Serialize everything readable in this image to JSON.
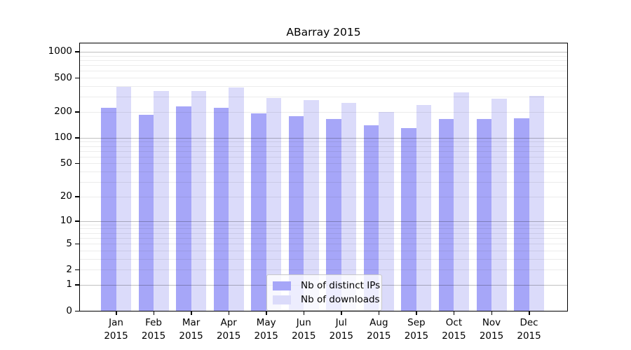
{
  "chart_data": {
    "type": "bar",
    "title": "ABarray 2015",
    "categories": [
      "Jan 2015",
      "Feb 2015",
      "Mar 2015",
      "Apr 2015",
      "May 2015",
      "Jun 2015",
      "Jul 2015",
      "Aug 2015",
      "Sep 2015",
      "Oct 2015",
      "Nov 2015",
      "Dec 2015"
    ],
    "months": [
      "Jan",
      "Feb",
      "Mar",
      "Apr",
      "May",
      "Jun",
      "Jul",
      "Aug",
      "Sep",
      "Oct",
      "Nov",
      "Dec"
    ],
    "year": "2015",
    "series": [
      {
        "name": "Nb of distinct IPs",
        "color": "#a6a6f8",
        "values": [
          225,
          185,
          230,
          222,
          193,
          178,
          166,
          140,
          129,
          166,
          166,
          170
        ]
      },
      {
        "name": "Nb of downloads",
        "color": "#dbdbfa",
        "values": [
          390,
          350,
          350,
          385,
          291,
          277,
          256,
          198,
          240,
          339,
          286,
          305
        ]
      }
    ],
    "y_axis": {
      "scale": "log10(value+1)",
      "ticks": [
        0,
        1,
        2,
        5,
        10,
        20,
        50,
        100,
        200,
        500,
        1000
      ],
      "max": 1250,
      "major_gridlines": [
        1,
        10,
        100,
        1000
      ],
      "minor_gridlines": [
        2,
        3,
        4,
        5,
        6,
        7,
        8,
        9,
        20,
        30,
        40,
        50,
        60,
        70,
        80,
        90,
        200,
        300,
        400,
        500,
        600,
        700,
        800,
        900
      ]
    },
    "legend": {
      "position": "bottom-center"
    },
    "grid": true,
    "colors": {
      "major_grid": "#c0c0c0",
      "minor_grid": "#ececec",
      "spine": "#000000",
      "background": "#ffffff"
    }
  }
}
